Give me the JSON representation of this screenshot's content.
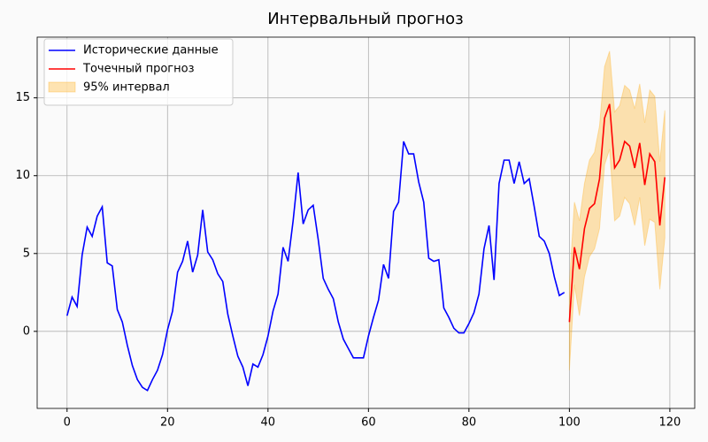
{
  "chart_data": {
    "type": "line",
    "title": "Интервальный прогноз",
    "xlim": [
      -5.95,
      124.95
    ],
    "ylim": [
      -4.95,
      18.9
    ],
    "xticks": [
      0,
      20,
      40,
      60,
      80,
      100,
      120
    ],
    "yticks": [
      0,
      5,
      10,
      15
    ],
    "grid": true,
    "legend": "upper left",
    "series": [
      {
        "name": "Исторические данные",
        "color": "#0000ff",
        "x": [
          0,
          1,
          2,
          3,
          4,
          5,
          6,
          7,
          8,
          9,
          10,
          11,
          12,
          13,
          14,
          15,
          16,
          17,
          18,
          19,
          20,
          21,
          22,
          23,
          24,
          25,
          26,
          27,
          28,
          29,
          30,
          31,
          32,
          33,
          34,
          35,
          36,
          37,
          38,
          39,
          40,
          41,
          42,
          43,
          44,
          45,
          46,
          47,
          48,
          49,
          50,
          51,
          52,
          53,
          54,
          55,
          56,
          57,
          58,
          59,
          60,
          61,
          62,
          63,
          64,
          65,
          66,
          67,
          68,
          69,
          70,
          71,
          72,
          73,
          74,
          75,
          76,
          77,
          78,
          79,
          80,
          81,
          82,
          83,
          84,
          85,
          86,
          87,
          88,
          89,
          90,
          91,
          92,
          93,
          94,
          95,
          96,
          97,
          98,
          99
        ],
        "values": [
          1.0,
          2.2,
          1.6,
          4.9,
          6.7,
          6.1,
          7.4,
          8.0,
          4.4,
          4.2,
          1.4,
          0.6,
          -0.9,
          -2.2,
          -3.1,
          -3.6,
          -3.8,
          -3.1,
          -2.5,
          -1.5,
          0.1,
          1.3,
          3.8,
          4.5,
          5.8,
          3.8,
          4.9,
          7.8,
          5.1,
          4.6,
          3.7,
          3.2,
          1.1,
          -0.3,
          -1.6,
          -2.3,
          -3.5,
          -2.1,
          -2.3,
          -1.5,
          -0.3,
          1.3,
          2.4,
          5.4,
          4.5,
          7.1,
          10.2,
          6.9,
          7.8,
          8.1,
          5.9,
          3.4,
          2.7,
          2.1,
          0.6,
          -0.5,
          -1.1,
          -1.7,
          -1.7,
          -1.7,
          -0.3,
          0.9,
          2.0,
          4.3,
          3.4,
          7.7,
          8.3,
          12.2,
          11.4,
          11.4,
          9.6,
          8.3,
          4.7,
          4.5,
          4.6,
          1.5,
          0.9,
          0.2,
          -0.1,
          -0.1,
          0.5,
          1.2,
          2.4,
          5.3,
          6.8,
          3.3,
          9.5,
          11.0,
          11.0,
          9.5,
          10.9,
          9.5,
          9.8,
          8.0,
          6.1,
          5.8,
          5.0,
          3.5,
          2.3,
          2.5
        ]
      },
      {
        "name": "Точечный прогноз",
        "color": "#ff0000",
        "x": [
          100,
          101,
          102,
          103,
          104,
          105,
          106,
          107,
          108,
          109,
          110,
          111,
          112,
          113,
          114,
          115,
          116,
          117,
          118,
          119
        ],
        "values": [
          0.6,
          5.4,
          4.0,
          6.6,
          7.9,
          8.2,
          9.8,
          13.7,
          14.6,
          10.5,
          11.0,
          12.2,
          11.9,
          10.5,
          12.1,
          9.4,
          11.4,
          10.9,
          6.8,
          9.9
        ]
      },
      {
        "name": "95% интервал",
        "color": "#ffa500",
        "alpha": 0.3,
        "x": [
          100,
          101,
          102,
          103,
          104,
          105,
          106,
          107,
          108,
          109,
          110,
          111,
          112,
          113,
          114,
          115,
          116,
          117,
          118,
          119
        ],
        "lower": [
          -2.5,
          3.0,
          1.0,
          3.5,
          4.8,
          5.3,
          6.6,
          10.7,
          11.7,
          7.1,
          7.4,
          8.6,
          8.2,
          6.8,
          8.6,
          5.5,
          7.2,
          7.0,
          2.7,
          6.0
        ],
        "upper": [
          3.0,
          8.3,
          7.1,
          9.5,
          11.0,
          11.5,
          13.2,
          17.0,
          18.0,
          14.1,
          14.5,
          15.8,
          15.5,
          14.3,
          15.9,
          13.4,
          15.5,
          15.1,
          10.9,
          14.2
        ]
      }
    ]
  }
}
